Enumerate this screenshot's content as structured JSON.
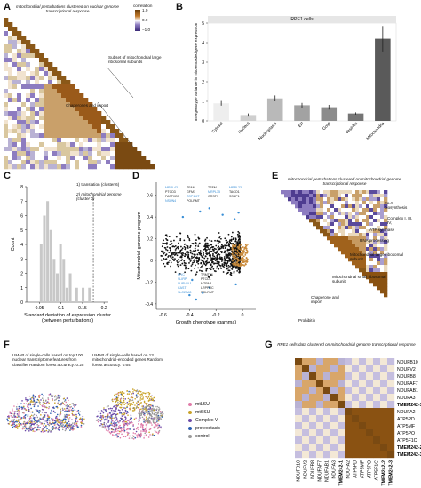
{
  "panel_letters": [
    "A",
    "B",
    "C",
    "D",
    "E",
    "F",
    "G"
  ],
  "panelA": {
    "title": "mitochondrial perturbations clustered on nuclear genome transcriptional response",
    "colorbar": {
      "label": "correlation",
      "ticks": [
        "1.0",
        "0.0",
        "−1.0"
      ],
      "colors": [
        "#6a3d0a",
        "#ffffff",
        "#3b2a78"
      ]
    },
    "ann_large": "Subset of mitochondrial large ribosomal subunits",
    "ann_chap": "Chaperones and import"
  },
  "panelB": {
    "title": "RPE1 cells"
  },
  "panelC": {
    "ann1": "1) translation (cluster 6)",
    "ann2": "2) mitochondrial genome (cluster 0)"
  },
  "panelD": {
    "labels_top": [
      "MRPL43",
      "TFAM",
      "TSFM",
      "MRPL23",
      "PTCD3",
      "GFM1",
      "MRPL35",
      "TACO1",
      "FASTKD5",
      "TOP1MT",
      "GRSF1",
      "SSBP1",
      "NSUN4",
      "POLRMT"
    ],
    "labels_bottom": [
      "MYC",
      "TRMT61",
      "SLIRP",
      "PTCD1",
      "SUPV3L1",
      "MTPAP",
      "CAST",
      "LRPPRC",
      "SLC25A3",
      "POLRMT"
    ]
  },
  "panelE": {
    "title": "mitochondrial perturbations clustered on mitochondrial genome transcriptional response",
    "ann_fes": "Fe-S biosynthesis",
    "ann_complex": "Complex I, III, IV,",
    "ann_atp": "ATP synthase",
    "ann_rna": "RNA processing",
    "ann_large": "Mitochondrial large ribosomal subunit",
    "ann_small": "Mitochondrial small ribosomal subunit",
    "ann_chap": "Chaperone and import",
    "ann_proh": "Prohibitin"
  },
  "panelF": {
    "left_caption": "UMAP of single-cells based on top 100 nuclear transcriptome features from classifier Random forest accuracy: 0.25",
    "right_caption": "UMAP of single-cells based on 13 mitochondrial-encoded genes Random forest accuracy: 0.64",
    "legend": [
      {
        "label": "mtLSU",
        "color": "#e07aa8"
      },
      {
        "label": "mtSSU",
        "color": "#c9a227"
      },
      {
        "label": "Complex V",
        "color": "#6c4aa8"
      },
      {
        "label": "proteostasis",
        "color": "#2a5db0"
      },
      {
        "label": "control",
        "color": "#9a9a9a"
      }
    ]
  },
  "panelG": {
    "title": "RPE1 cells data clustered on mitochondrial genome transcriptional response",
    "genes": [
      "NDUFB10",
      "NDUFV2",
      "NDUFB8",
      "NDUFAF7",
      "NDUFAB1",
      "NDUFA3",
      "TMEM242-1",
      "NDUFA2",
      "ATP5PD",
      "ATP5MF",
      "ATP5PO",
      "ATP5F1C",
      "TMEM242-2",
      "TMEM242-3"
    ],
    "bold_genes": [
      "TMEM242-1",
      "TMEM242-2",
      "TMEM242-3"
    ]
  },
  "chart_data": [
    {
      "type": "bar",
      "panel": "B",
      "title": "RPE1 cells",
      "categories": [
        "Cytosol",
        "Nucleoli",
        "Nucleoplasm",
        "ER",
        "Golgi",
        "Vesicles",
        "Mitochondria"
      ],
      "values": [
        0.9,
        0.3,
        1.15,
        0.8,
        0.7,
        0.38,
        4.2
      ],
      "errors": [
        0.12,
        0.08,
        0.15,
        0.12,
        0.12,
        0.06,
        0.65
      ],
      "bar_colors": [
        "#eeeeee",
        "#cfcfcf",
        "#b9b9b9",
        "#a2a2a2",
        "#8c8c8c",
        "#757575",
        "#5a5a5a"
      ],
      "xlabel": "",
      "ylabel": "Intergenotype variance in mito-encoded gene expression",
      "ylim": [
        0,
        5
      ],
      "yticks": [
        0,
        1,
        2,
        3,
        4,
        5
      ]
    },
    {
      "type": "bar",
      "panel": "C",
      "title": "",
      "xlabel": "Standard deviation of expression cluster (between perturbations)",
      "ylabel": "Count",
      "bin_edges": [
        0.05,
        0.0575,
        0.065,
        0.0725,
        0.08,
        0.0875,
        0.095,
        0.1025,
        0.11,
        0.1175,
        0.125,
        0.1325,
        0.14,
        0.1475,
        0.155,
        0.1625,
        0.17
      ],
      "counts": [
        4,
        6,
        7,
        5,
        3,
        2,
        4,
        3,
        1,
        2,
        0,
        1,
        0,
        1,
        0,
        1
      ],
      "xticks": [
        0.05,
        0.1,
        0.15,
        0.2
      ],
      "yticks": [
        0,
        1,
        2,
        3,
        4,
        5,
        6,
        7,
        8
      ],
      "ylim": [
        0,
        8
      ],
      "xlim": [
        0.02,
        0.21
      ],
      "vline": 0.175
    },
    {
      "type": "scatter",
      "panel": "D",
      "title": "",
      "xlabel": "Growth phenotype (gamma)",
      "ylabel": "Mitochondrial genome program",
      "xlim": [
        -0.65,
        0.1
      ],
      "ylim": [
        -0.45,
        0.72
      ],
      "xticks": [
        -0.6,
        -0.4,
        -0.2,
        0
      ],
      "yticks": [
        -0.4,
        -0.2,
        0,
        0.2,
        0.4,
        0.6
      ],
      "series": [
        {
          "color": "#111111",
          "points": [
            [
              -0.05,
              0.02
            ],
            [
              -0.1,
              0.05
            ],
            [
              -0.2,
              0.08
            ],
            [
              -0.3,
              0.1
            ],
            [
              -0.4,
              0.05
            ],
            [
              -0.5,
              0.1
            ],
            [
              -0.25,
              -0.1
            ]
          ]
        },
        {
          "color": "#c98a3a",
          "points": [
            [
              -0.02,
              0.06
            ],
            [
              -0.05,
              0.1
            ],
            [
              -0.03,
              -0.02
            ],
            [
              0.0,
              0.12
            ]
          ]
        },
        {
          "color": "#3a8fd6",
          "points": [
            [
              -0.45,
              0.4
            ],
            [
              -0.32,
              0.45
            ],
            [
              -0.25,
              0.48
            ],
            [
              -0.15,
              0.42
            ],
            [
              -0.06,
              0.38
            ],
            [
              -0.03,
              0.44
            ],
            [
              -0.38,
              -0.18
            ],
            [
              -0.25,
              -0.25
            ],
            [
              -0.3,
              -0.3
            ],
            [
              -0.35,
              -0.36
            ],
            [
              -0.4,
              -0.32
            ],
            [
              -0.05,
              -0.22
            ]
          ]
        }
      ]
    }
  ]
}
